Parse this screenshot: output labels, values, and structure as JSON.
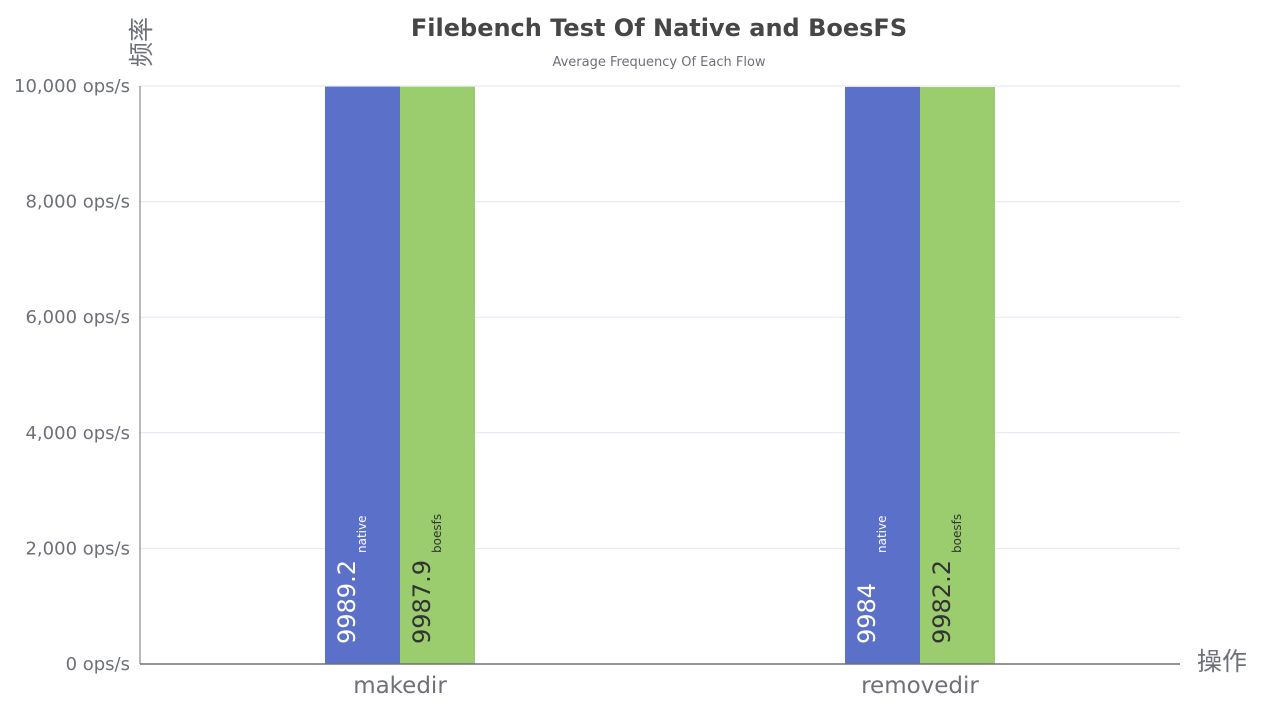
{
  "chart_data": {
    "type": "bar",
    "title": "Filebench Test Of Native and BoesFS",
    "subtitle": "Average Frequency Of Each Flow",
    "xlabel": "操作",
    "ylabel": "频率",
    "categories": [
      "makedir",
      "removedir"
    ],
    "series": [
      {
        "name": "native",
        "values": [
          9989.2,
          9984
        ],
        "color": "#5b70c9"
      },
      {
        "name": "boesfs",
        "values": [
          9987.9,
          9982.2
        ],
        "color": "#9bcd6e"
      }
    ],
    "ylim": [
      0,
      10000
    ],
    "yticks": [
      0,
      2000,
      4000,
      6000,
      8000,
      10000
    ],
    "ytick_labels": [
      "0 ops/s",
      "2,000 ops/s",
      "4,000 ops/s",
      "6,000 ops/s",
      "8,000 ops/s",
      "10,000 ops/s"
    ],
    "grid": true
  }
}
